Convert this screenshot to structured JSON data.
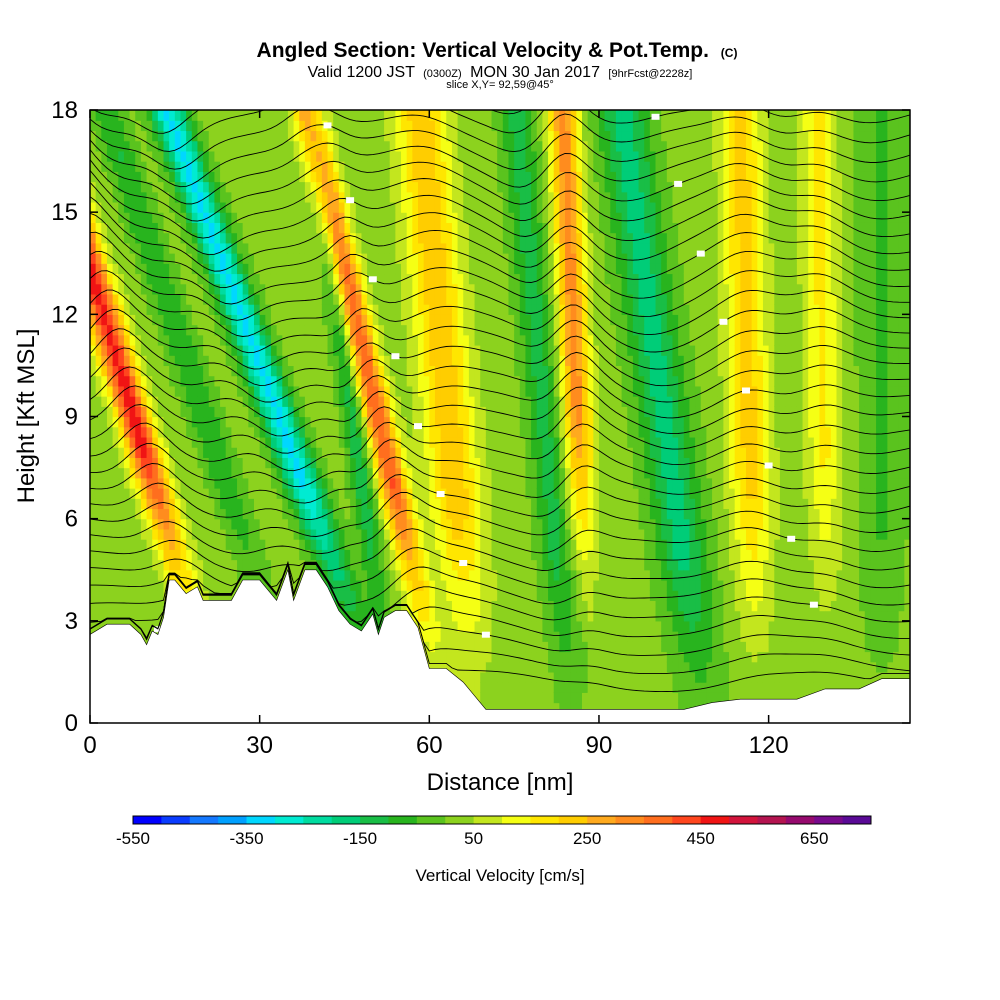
{
  "header": {
    "title": "Angled Section: Vertical Velocity & Pot.Temp.",
    "title_suffix": "(C)",
    "valid_line": "Valid 1200 JST",
    "valid_utc": "(0300Z)",
    "valid_date": "MON 30 Jan 2017",
    "forecast_tag": "[9hrFcst@2228z]",
    "slice": "slice X,Y= 92,59@45°"
  },
  "chart_data": {
    "type": "heatmap",
    "xlabel": "Distance [nm]",
    "ylabel": "Height [Kft MSL]",
    "xlim": [
      0,
      145
    ],
    "ylim": [
      0,
      18
    ],
    "x_ticks": [
      0,
      30,
      60,
      90,
      120
    ],
    "x_tick_labels": [
      "0",
      "30",
      "60",
      "90",
      "120"
    ],
    "y_ticks": [
      0,
      3,
      6,
      9,
      12,
      15,
      18
    ],
    "y_tick_labels": [
      "0",
      "3",
      "6",
      "9",
      "12",
      "15",
      "18"
    ],
    "colorbar": {
      "label": "Vertical Velocity [cm/s]",
      "min": -550,
      "max": 750,
      "step": 50,
      "tick_values": [
        -550,
        -350,
        -150,
        50,
        250,
        450,
        650
      ],
      "tick_labels": [
        "-550",
        "-350",
        "-150",
        "50",
        "250",
        "450",
        "650"
      ],
      "colors": [
        "#0000ff",
        "#0a3cff",
        "#1478ff",
        "#00a0ff",
        "#00d7ff",
        "#00ebd2",
        "#00dca0",
        "#00cd78",
        "#19be46",
        "#28b41e",
        "#5ac31e",
        "#8cd21e",
        "#c3e61e",
        "#f5ff14",
        "#ffe600",
        "#ffcd00",
        "#ffaa1e",
        "#ff8c1e",
        "#ff6e1e",
        "#ff461e",
        "#f01414",
        "#d2143c",
        "#b41450",
        "#960a6e",
        "#780a8c",
        "#5a0a96"
      ]
    },
    "velocity_bands": [
      {
        "x": 13,
        "tilt": 3.2,
        "width": 3.0,
        "amp": 450,
        "zmin": 4.0
      },
      {
        "x": 26,
        "tilt": 3.5,
        "width": 2.8,
        "amp": -120,
        "zmin": 3.5
      },
      {
        "x": 40,
        "tilt": 4.0,
        "width": 3.2,
        "amp": -330,
        "zmin": 3.0
      },
      {
        "x": 55,
        "tilt": 2.5,
        "width": 2.6,
        "amp": 380,
        "zmin": 3.0
      },
      {
        "x": 49,
        "tilt": 1.5,
        "width": 2.0,
        "amp": -150,
        "zmin": 2.0
      },
      {
        "x": 65,
        "tilt": 1.0,
        "width": 4.5,
        "amp": 220,
        "zmin": 2.5
      },
      {
        "x": 82,
        "tilt": 1.0,
        "width": 3.0,
        "amp": -140,
        "zmin": 1.0
      },
      {
        "x": 87,
        "tilt": 0.5,
        "width": 2.6,
        "amp": 300,
        "zmin": 5.0
      },
      {
        "x": 104,
        "tilt": 1.5,
        "width": 4.5,
        "amp": -190,
        "zmin": 1.0
      },
      {
        "x": 117,
        "tilt": 0.3,
        "width": 3.5,
        "amp": 200,
        "zmin": 3.0
      },
      {
        "x": 130,
        "tilt": 0.2,
        "width": 3.0,
        "amp": 140,
        "zmin": 4.0
      },
      {
        "x": 140,
        "tilt": 0.0,
        "width": 4.0,
        "amp": -80,
        "zmin": 2.0
      }
    ],
    "terrain": {
      "x": [
        0,
        3,
        7,
        9,
        10,
        11,
        12,
        13,
        14,
        15,
        17,
        19,
        20,
        22,
        25,
        27,
        30,
        33,
        35,
        36,
        38,
        40,
        42,
        44,
        46,
        48,
        50,
        51,
        52,
        54,
        56,
        58,
        60,
        63,
        66,
        70,
        74,
        78,
        82,
        86,
        90,
        95,
        100,
        105,
        110,
        115,
        120,
        125,
        130,
        136,
        140,
        145
      ],
      "y": [
        2.6,
        2.9,
        2.9,
        2.6,
        2.3,
        2.7,
        2.6,
        3.1,
        4.2,
        4.2,
        3.8,
        4.0,
        3.6,
        3.6,
        3.6,
        4.2,
        4.2,
        3.6,
        4.5,
        3.6,
        4.5,
        4.5,
        4.0,
        3.3,
        2.9,
        2.7,
        3.2,
        2.6,
        3.1,
        3.3,
        3.3,
        2.8,
        1.6,
        1.6,
        1.2,
        0.4,
        0.4,
        0.4,
        0.4,
        0.4,
        0.4,
        0.4,
        0.4,
        0.4,
        0.6,
        0.7,
        0.7,
        0.7,
        1.0,
        1.0,
        1.3,
        1.3
      ]
    },
    "theta": {
      "count": 34,
      "spacing_kft": 0.52,
      "label_interval": 2,
      "label_prefix": ""
    },
    "grid": false
  }
}
